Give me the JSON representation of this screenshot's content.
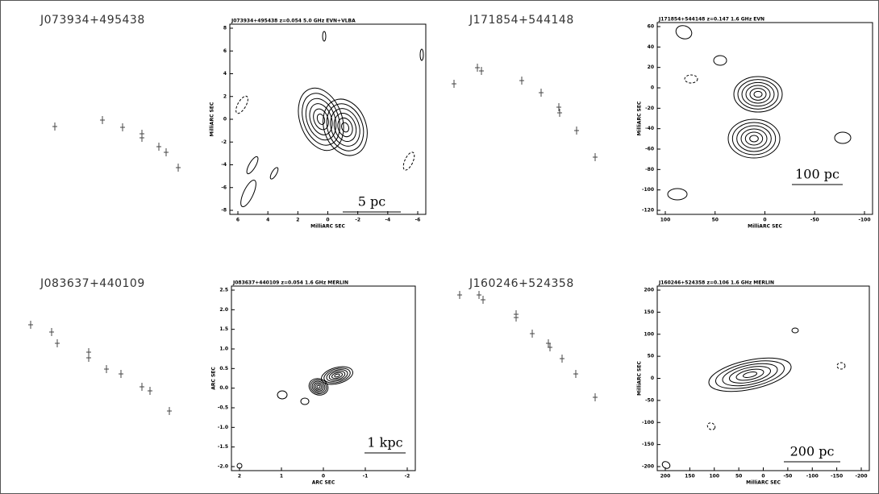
{
  "panels": [
    {
      "source": "J073934+495438",
      "map": {
        "title": "J073934+495438 z=0.054  5.0 GHz EVN+VLBA",
        "ylabel": "MilliARC SEC",
        "xlabel": "MilliARC SEC",
        "yticks": [
          "8",
          "6",
          "4",
          "2",
          "0",
          "-2",
          "-4",
          "-6",
          "-8"
        ],
        "xticks": [
          "6",
          "4",
          "2",
          "0",
          "-2",
          "-4",
          "-6"
        ],
        "scalebar": "5 pc"
      }
    },
    {
      "source": "J171854+544148",
      "map": {
        "title": "J171854+544148 z=0.147  1.6 GHz EVN",
        "ylabel": "MilliARC SEC",
        "xlabel": "MilliARC SEC",
        "yticks": [
          "60",
          "40",
          "20",
          "0",
          "-20",
          "-40",
          "-60",
          "-80",
          "-100",
          "-120"
        ],
        "xticks": [
          "100",
          "50",
          "0",
          "-50",
          "-100"
        ],
        "scalebar": "100 pc"
      }
    },
    {
      "source": "J083637+440109",
      "map": {
        "title": "J083637+440109 z=0.054 1.6 GHz MERLIN",
        "ylabel": "ARC SEC",
        "xlabel": "ARC SEC",
        "yticks": [
          "2.5",
          "2.0",
          "1.5",
          "1.0",
          "0.5",
          "0.0",
          "-0.5",
          "-1.0",
          "-1.5",
          "-2.0"
        ],
        "xticks": [
          "2",
          "1",
          "0",
          "-1",
          "-2"
        ],
        "scalebar": "1 kpc"
      }
    },
    {
      "source": "J160246+524358",
      "map": {
        "title": "J160246+524358 z=0.106  1.6 GHz MERLIN",
        "ylabel": "MilliARC SEC",
        "xlabel": "MilliARC SEC",
        "yticks": [
          "200",
          "150",
          "100",
          "50",
          "0",
          "-50",
          "-100",
          "-150",
          "-200"
        ],
        "xticks": [
          "200",
          "150",
          "100",
          "50",
          "0",
          "-50",
          "-100",
          "-150",
          "-200"
        ],
        "scalebar": "200 pc"
      }
    }
  ]
}
